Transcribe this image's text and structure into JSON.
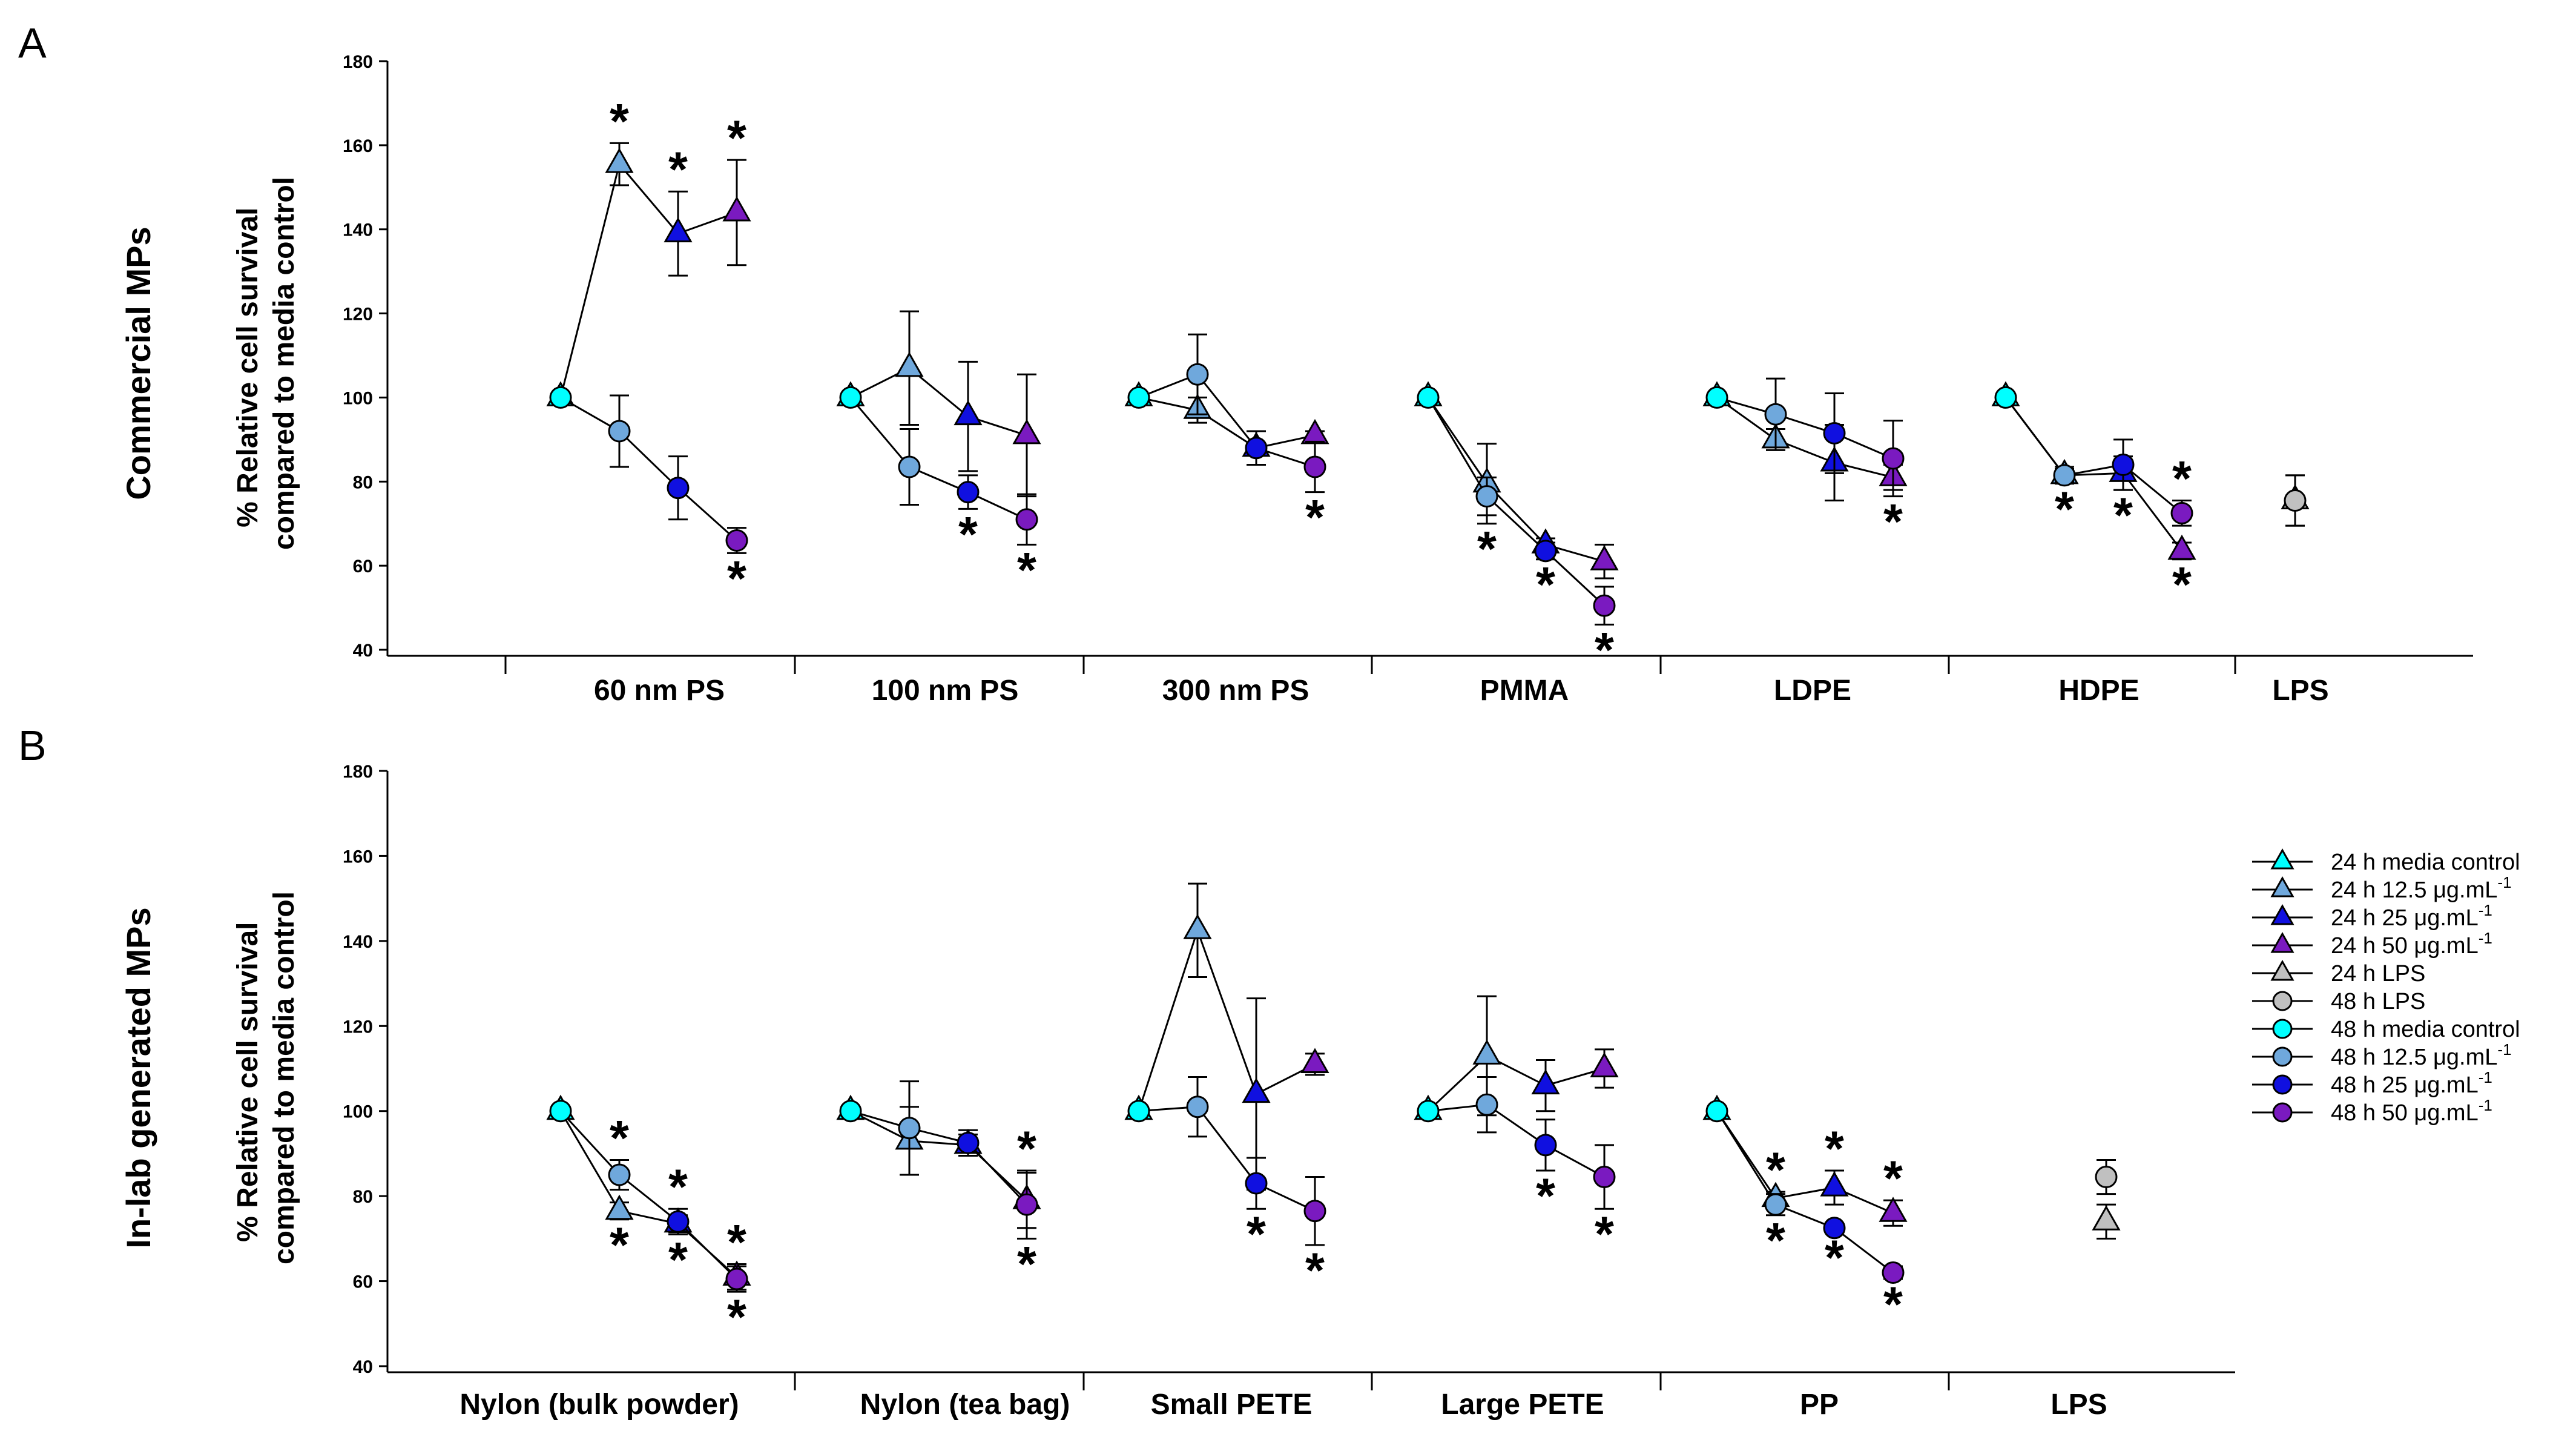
{
  "colors": {
    "media": "#00FFFF",
    "c12": "#6FA8DC",
    "c25": "#1010E0",
    "c50": "#7A1AC0",
    "lps": "#C0C0C0"
  },
  "legend": [
    {
      "label": "24 h media control",
      "marker": "triangle",
      "color": "media"
    },
    {
      "label": "24 h 12.5 μg.mL",
      "sup": "-1",
      "marker": "triangle",
      "color": "c12"
    },
    {
      "label": "24 h 25 μg.mL",
      "sup": "-1",
      "marker": "triangle",
      "color": "c25"
    },
    {
      "label": "24 h 50 μg.mL",
      "sup": "-1",
      "marker": "triangle",
      "color": "c50"
    },
    {
      "label": "24 h LPS",
      "marker": "triangle",
      "color": "lps"
    },
    {
      "label": "48 h LPS",
      "marker": "circle",
      "color": "lps"
    },
    {
      "label": "48 h media control",
      "marker": "circle",
      "color": "media"
    },
    {
      "label": "48 h 12.5 μg.mL",
      "sup": "-1",
      "marker": "circle",
      "color": "c12"
    },
    {
      "label": "48 h 25 μg.mL",
      "sup": "-1",
      "marker": "circle",
      "color": "c25"
    },
    {
      "label": "48 h 50 μg.mL",
      "sup": "-1",
      "marker": "circle",
      "color": "c50"
    }
  ],
  "chart_data": [
    {
      "panel": "A",
      "type": "line",
      "row_label": "Commercial MPs",
      "ylabel": [
        "% Relative cell survival",
        "compared to media control"
      ],
      "ylim": [
        40,
        180
      ],
      "yticks": [
        40,
        60,
        80,
        100,
        120,
        140,
        160,
        180
      ],
      "star": "*",
      "categories": [
        {
          "name": "60 nm PS",
          "24h": [
            [
              100,
              0
            ],
            [
              155.5,
              5
            ],
            [
              139,
              10
            ],
            [
              144,
              12.5
            ]
          ],
          "48h": [
            [
              100,
              0
            ],
            [
              92,
              8.5
            ],
            [
              78.5,
              7.5
            ],
            [
              66,
              3
            ]
          ],
          "stars_top": [
            1,
            2,
            3
          ],
          "stars_bottom": [
            3
          ]
        },
        {
          "name": "100 nm PS",
          "24h": [
            [
              100,
              0
            ],
            [
              107,
              13.5
            ],
            [
              95.5,
              13
            ],
            [
              91,
              14.5
            ]
          ],
          "48h": [
            [
              100,
              0
            ],
            [
              83.5,
              9
            ],
            [
              77.5,
              4
            ],
            [
              71,
              6
            ]
          ],
          "stars_top": [],
          "stars_bottom": [
            2,
            3
          ]
        },
        {
          "name": "300 nm PS",
          "24h": [
            [
              100,
              0
            ],
            [
              97,
              3
            ],
            [
              88,
              4
            ],
            [
              91,
              1
            ]
          ],
          "48h": [
            [
              100,
              0
            ],
            [
              105.5,
              9.5
            ],
            [
              88,
              4
            ],
            [
              83.5,
              6
            ]
          ],
          "stars_top": [],
          "stars_bottom": [
            3
          ]
        },
        {
          "name": "PMMA",
          "24h": [
            [
              100,
              0
            ],
            [
              79.5,
              9.5
            ],
            [
              65,
              1.5
            ],
            [
              61,
              4
            ]
          ],
          "48h": [
            [
              100,
              0
            ],
            [
              76.5,
              4.5
            ],
            [
              63.5,
              2
            ],
            [
              50.5,
              4.5
            ]
          ],
          "stars_top": [],
          "stars_bottom": [
            1,
            2,
            3
          ]
        },
        {
          "name": "LDPE",
          "24h": [
            [
              100,
              0
            ],
            [
              90,
              2.5
            ],
            [
              84.5,
              9
            ],
            [
              81,
              3
            ]
          ],
          "48h": [
            [
              100,
              0
            ],
            [
              96,
              8.5
            ],
            [
              91.5,
              9.5
            ],
            [
              85.5,
              9
            ]
          ],
          "stars_top": [],
          "stars_bottom": [
            3
          ]
        },
        {
          "name": "HDPE",
          "24h": [
            [
              100,
              0
            ],
            [
              81.5,
              2
            ],
            [
              82,
              4
            ],
            [
              63.5,
              2
            ]
          ],
          "48h": [
            [
              100,
              0
            ],
            [
              81.5,
              1.5
            ],
            [
              84,
              6
            ],
            [
              72.5,
              3
            ]
          ],
          "stars_top": [
            3
          ],
          "stars_bottom": [
            1,
            2,
            3
          ]
        },
        {
          "name": "LPS",
          "lps": true,
          "24h": [
            [
              75.5,
              6
            ]
          ],
          "48h": [
            [
              75.5,
              6
            ]
          ],
          "stars_top": [],
          "stars_bottom": []
        }
      ]
    },
    {
      "panel": "B",
      "type": "line",
      "row_label": "In-lab generated MPs",
      "ylabel": [
        "% Relative cell survival",
        "compared to media control"
      ],
      "ylim": [
        40,
        180
      ],
      "yticks": [
        40,
        60,
        80,
        100,
        120,
        140,
        160,
        180
      ],
      "star": "*",
      "categories": [
        {
          "name": "Nylon (bulk powder)",
          "24h": [
            [
              100,
              0
            ],
            [
              76.5,
              2
            ],
            [
              73.5,
              2
            ],
            [
              61,
              3
            ]
          ],
          "48h": [
            [
              100,
              0
            ],
            [
              85,
              3.5
            ],
            [
              74,
              3
            ],
            [
              60.5,
              3
            ]
          ],
          "stars_top": [
            1,
            2,
            3
          ],
          "stars_bottom": [
            1,
            2,
            3
          ]
        },
        {
          "name": "Nylon (tea bag)",
          "24h": [
            [
              100,
              0
            ],
            [
              93,
              8
            ],
            [
              92,
              2.5
            ],
            [
              79,
              6.5
            ]
          ],
          "48h": [
            [
              100,
              0
            ],
            [
              96,
              11
            ],
            [
              92.5,
              3
            ],
            [
              78,
              8
            ]
          ],
          "stars_top": [
            3
          ],
          "stars_bottom": [
            3
          ]
        },
        {
          "name": "Small PETE",
          "24h": [
            [
              100,
              0
            ],
            [
              142.5,
              11
            ],
            [
              104,
              22.5
            ],
            [
              111,
              2.5
            ]
          ],
          "48h": [
            [
              100,
              0
            ],
            [
              101,
              7
            ],
            [
              83,
              6
            ],
            [
              76.5,
              8
            ]
          ],
          "stars_top": [],
          "stars_bottom": [
            2,
            3
          ]
        },
        {
          "name": "Large PETE",
          "24h": [
            [
              100,
              0
            ],
            [
              113,
              14
            ],
            [
              106,
              6
            ],
            [
              110,
              4.5
            ]
          ],
          "48h": [
            [
              100,
              0
            ],
            [
              101.5,
              6.5
            ],
            [
              92,
              6
            ],
            [
              84.5,
              7.5
            ]
          ],
          "stars_top": [],
          "stars_bottom": [
            2,
            3
          ]
        },
        {
          "name": "PP",
          "24h": [
            [
              100,
              0
            ],
            [
              79.5,
              1.5
            ],
            [
              82,
              4
            ],
            [
              76,
              3
            ]
          ],
          "48h": [
            [
              100,
              0
            ],
            [
              78,
              2.5
            ],
            [
              72.5,
              1
            ],
            [
              62,
              1.5
            ]
          ],
          "stars_top": [
            1,
            2,
            3
          ],
          "stars_bottom": [
            1,
            2,
            3
          ]
        },
        {
          "name": "LPS",
          "lps": true,
          "24h": [
            [
              74,
              4
            ]
          ],
          "48h": [
            [
              84.5,
              4
            ]
          ],
          "stars_top": [],
          "stars_bottom": []
        }
      ]
    }
  ]
}
